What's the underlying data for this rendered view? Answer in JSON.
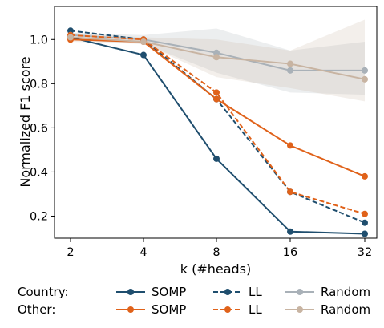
{
  "chart_data": {
    "type": "line",
    "xlabel": "k (#heads)",
    "ylabel": "Normalized F1 score",
    "x": [
      2,
      4,
      8,
      16,
      32
    ],
    "x_scale": "log2",
    "ylim": [
      0.1,
      1.15
    ],
    "yticks": [
      "0.2",
      "0.4",
      "0.6",
      "0.8",
      "1.0"
    ],
    "grid": false,
    "series": [
      {
        "group": "Country",
        "name": "SOMP",
        "style": "solid",
        "color": "#1f4e6e",
        "values": [
          1.01,
          0.93,
          0.46,
          0.13,
          0.12
        ]
      },
      {
        "group": "Country",
        "name": "LL",
        "style": "dashed",
        "color": "#1f4e6e",
        "values": [
          1.04,
          1.0,
          0.73,
          0.31,
          0.17
        ]
      },
      {
        "group": "Country",
        "name": "Random",
        "style": "solid",
        "color": "#a9b1b8",
        "values": [
          1.02,
          1.0,
          0.94,
          0.86,
          0.86
        ],
        "band_low": [
          1.0,
          0.98,
          0.85,
          0.76,
          0.75
        ],
        "band_high": [
          1.03,
          1.02,
          1.05,
          0.95,
          0.99
        ]
      },
      {
        "group": "Other",
        "name": "SOMP",
        "style": "solid",
        "color": "#e0621a",
        "values": [
          1.0,
          0.99,
          0.73,
          0.52,
          0.38
        ]
      },
      {
        "group": "Other",
        "name": "LL",
        "style": "dashed",
        "color": "#e0621a",
        "values": [
          1.02,
          1.0,
          0.76,
          0.31,
          0.21
        ]
      },
      {
        "group": "Other",
        "name": "Random",
        "style": "solid",
        "color": "#c8b4a2",
        "values": [
          1.01,
          0.99,
          0.92,
          0.89,
          0.82
        ],
        "band_low": [
          0.99,
          0.98,
          0.83,
          0.78,
          0.72
        ],
        "band_high": [
          1.03,
          1.01,
          1.0,
          0.95,
          1.09
        ]
      }
    ],
    "legend": {
      "placement": "bottom",
      "rows": [
        {
          "label": "Country:",
          "series": [
            0,
            1,
            2
          ]
        },
        {
          "label": "Other:",
          "series": [
            3,
            4,
            5
          ]
        }
      ]
    }
  }
}
